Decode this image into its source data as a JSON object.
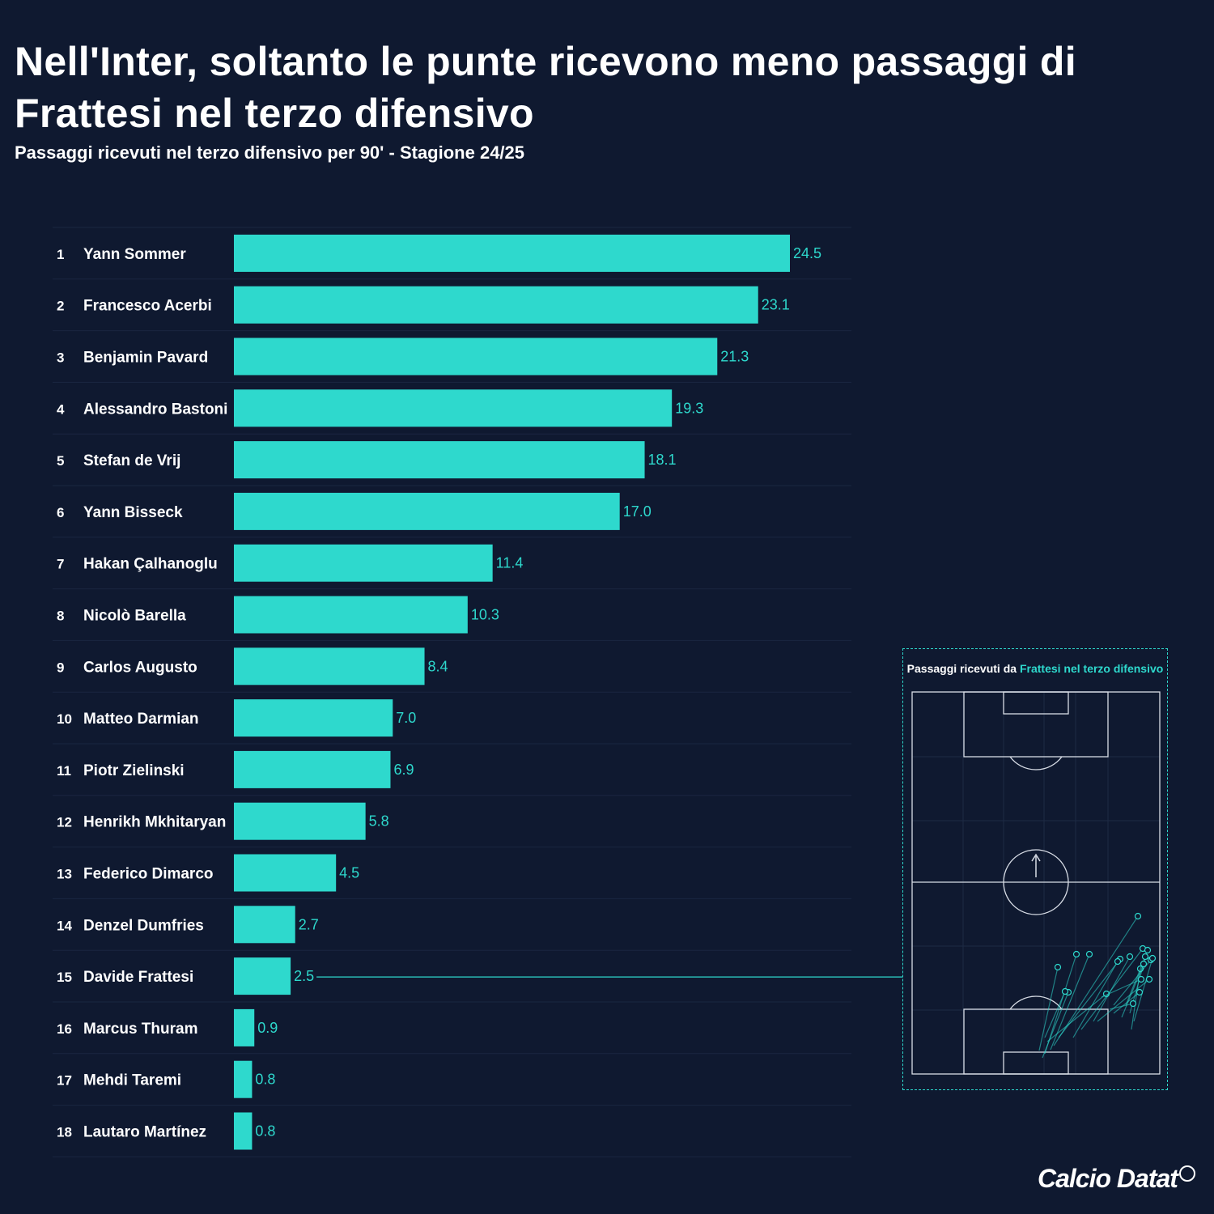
{
  "title": "Nell'Inter, soltanto le punte ricevono meno passaggi di Frattesi nel terzo difensivo",
  "subtitle": "Passaggi ricevuti nel terzo difensivo per 90' - Stagione 24/25",
  "colors": {
    "background": "#0f1930",
    "bar": "#2ed9cd",
    "text": "#ffffff",
    "accent": "#2ed9cd"
  },
  "chart_data": {
    "type": "bar",
    "orientation": "horizontal",
    "title": "Nell'Inter, soltanto le punte ricevono meno passaggi di Frattesi nel terzo difensivo",
    "subtitle": "Passaggi ricevuti nel terzo difensivo per 90' - Stagione 24/25",
    "ranks": [
      1,
      2,
      3,
      4,
      5,
      6,
      7,
      8,
      9,
      10,
      11,
      12,
      13,
      14,
      15,
      16,
      17,
      18
    ],
    "categories": [
      "Yann Sommer",
      "Francesco Acerbi",
      "Benjamin Pavard",
      "Alessandro Bastoni",
      "Stefan de Vrij",
      "Yann Bisseck",
      "Hakan Çalhanoglu",
      "Nicolò Barella",
      "Carlos Augusto",
      "Matteo Darmian",
      "Piotr Zielinski",
      "Henrikh Mkhitaryan",
      "Federico Dimarco",
      "Denzel Dumfries",
      "Davide Frattesi",
      "Marcus Thuram",
      "Mehdi Taremi",
      "Lautaro Martínez"
    ],
    "values": [
      24.5,
      23.1,
      21.3,
      19.3,
      18.1,
      17.0,
      11.4,
      10.3,
      8.4,
      7.0,
      6.9,
      5.8,
      4.5,
      2.7,
      2.5,
      0.9,
      0.8,
      0.8
    ],
    "value_labels": [
      "24.5",
      "23.1",
      "21.3",
      "19.3",
      "18.1",
      "17.0",
      "11.4",
      "10.3",
      "8.4",
      "7.0",
      "6.9",
      "5.8",
      "4.5",
      "2.7",
      "2.5",
      "0.9",
      "0.8",
      "0.8"
    ],
    "highlight": "Davide Frattesi",
    "xlim": [
      0,
      24.5
    ],
    "xlabel": "",
    "ylabel": "",
    "grid": false
  },
  "inset": {
    "title_prefix": "Passaggi ricevuti da ",
    "title_highlight": "Frattesi nel terzo difensivo",
    "pitch_orientation": "vertical",
    "attack_direction": "up"
  },
  "logo": {
    "text": "Calcio Datat"
  }
}
